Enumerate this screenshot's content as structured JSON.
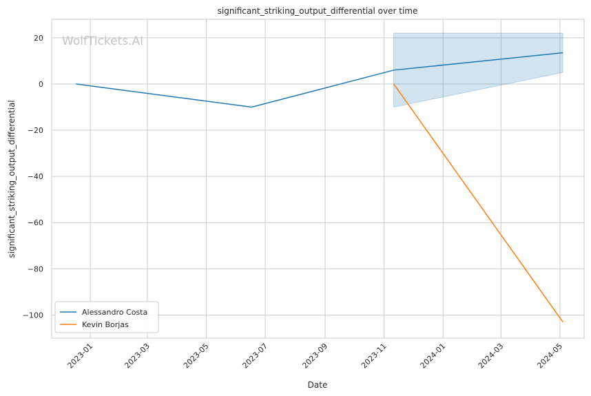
{
  "chart_data": {
    "type": "line",
    "title": "significant_striking_output_differential over time",
    "xlabel": "Date",
    "ylabel": "significant_striking_output_differential",
    "watermark": "WolfTickets.AI",
    "xlim": [
      "2022-11-22",
      "2024-05-26"
    ],
    "ylim": [
      -110,
      28
    ],
    "x_ticks": [
      "2023-01",
      "2023-03",
      "2023-05",
      "2023-07",
      "2023-09",
      "2023-11",
      "2024-01",
      "2024-03",
      "2024-05"
    ],
    "y_ticks": [
      20,
      0,
      -20,
      -40,
      -60,
      -80,
      -100
    ],
    "y_tick_labels": [
      "20",
      "0",
      "−20",
      "−40",
      "−60",
      "−80",
      "−100"
    ],
    "grid": true,
    "legend_position": "lower-left",
    "series": [
      {
        "name": "Alessandro Costa",
        "color": "#1f77b4",
        "points": [
          {
            "x": "2022-12-17",
            "y": 0
          },
          {
            "x": "2023-06-17",
            "y": -10
          },
          {
            "x": "2023-11-11",
            "y": 6
          },
          {
            "x": "2024-05-04",
            "y": 13.5
          }
        ],
        "band": [
          {
            "x": "2023-11-11",
            "low": -10,
            "high": 22
          },
          {
            "x": "2024-05-04",
            "low": 5,
            "high": 22
          }
        ]
      },
      {
        "name": "Kevin Borjas",
        "color": "#ff7f0e",
        "points": [
          {
            "x": "2023-11-11",
            "y": 0
          },
          {
            "x": "2024-05-04",
            "y": -103
          }
        ]
      }
    ]
  }
}
